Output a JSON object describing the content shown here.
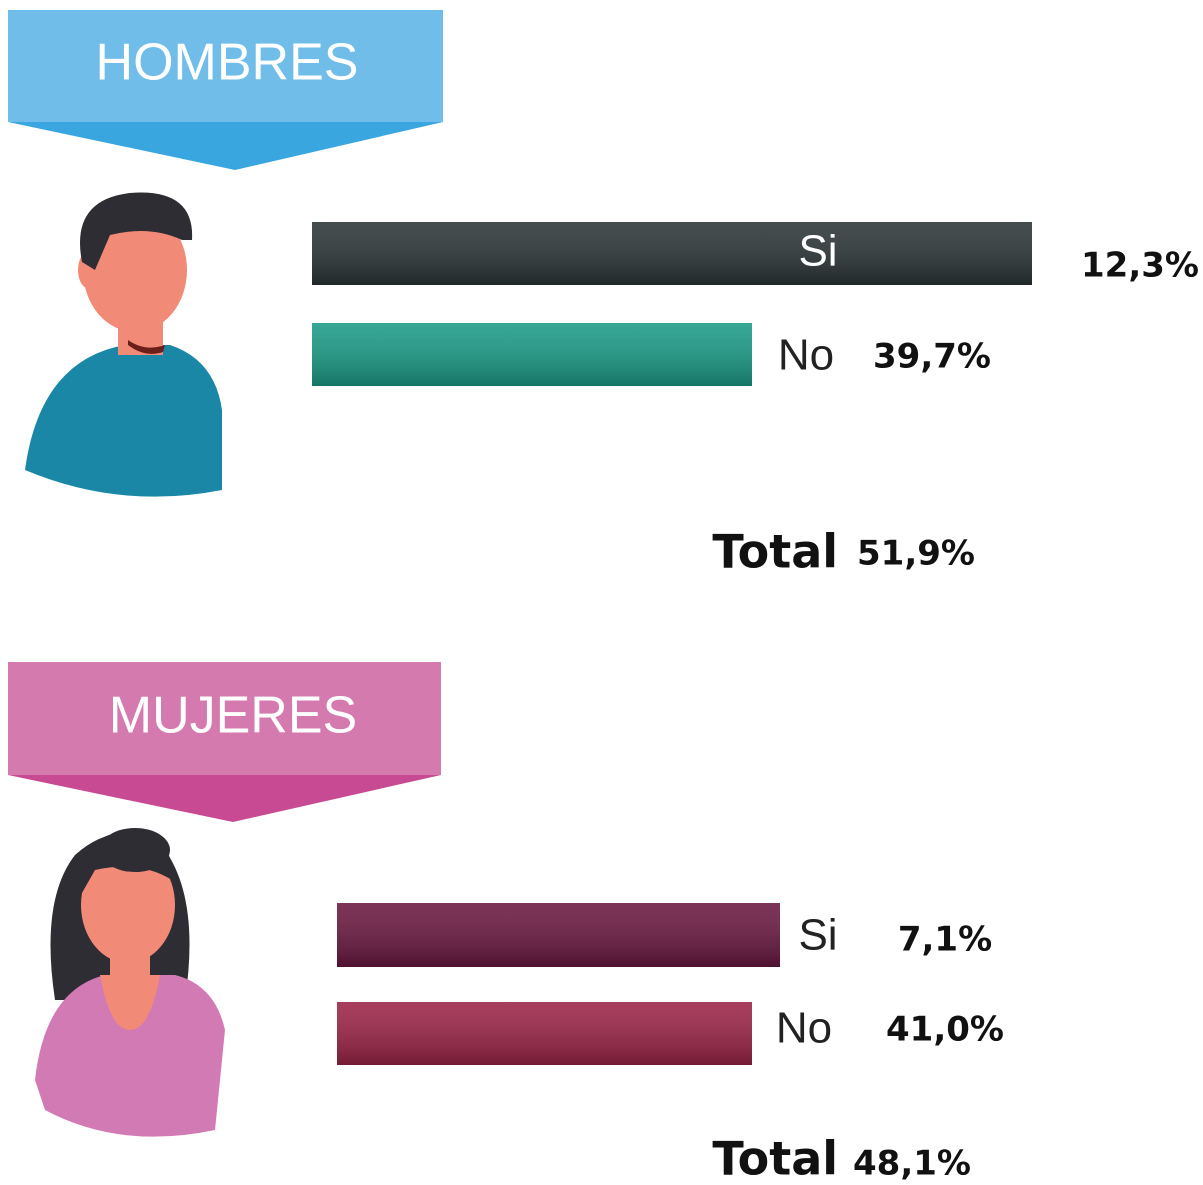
{
  "sections": [
    {
      "title": "HOMBRES",
      "rows": [
        {
          "label": "Si",
          "value": "12,3%"
        },
        {
          "label": "No",
          "value": "39,7%"
        }
      ],
      "total_label": "Total",
      "total": "51,9%"
    },
    {
      "title": "MUJERES",
      "rows": [
        {
          "label": "Si",
          "value": "7,1%"
        },
        {
          "label": "No",
          "value": "41,0%"
        }
      ],
      "total_label": "Total",
      "total": "48,1%"
    }
  ]
}
